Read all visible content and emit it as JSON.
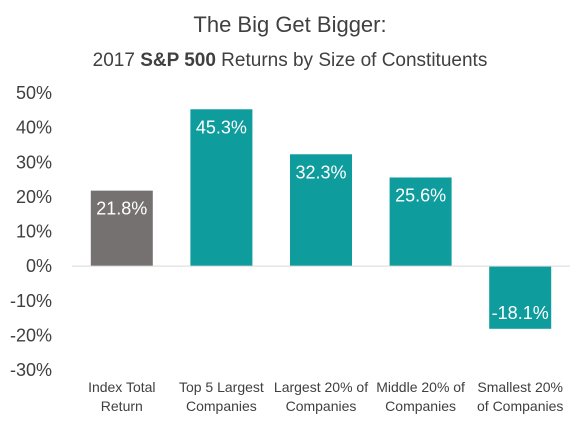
{
  "chart_data": {
    "type": "bar",
    "title": "The Big Get Bigger:",
    "subtitle": {
      "prefix": "2017 ",
      "bold": "S&P 500",
      "suffix": " Returns by Size of Constituents"
    },
    "categories": [
      [
        "Index Total",
        "Return"
      ],
      [
        "Top 5 Largest",
        "Companies"
      ],
      [
        "Largest 20% of",
        "Companies"
      ],
      [
        "Middle 20% of",
        "Companies"
      ],
      [
        "Smallest 20%",
        "of Companies"
      ]
    ],
    "values": [
      21.8,
      45.3,
      32.3,
      25.6,
      -18.1
    ],
    "value_labels": [
      "21.8%",
      "45.3%",
      "32.3%",
      "25.6%",
      "-18.1%"
    ],
    "bar_colors": [
      "#767171",
      "#0e9c9c",
      "#0e9c9c",
      "#0e9c9c",
      "#0e9c9c"
    ],
    "ylim": [
      -30,
      50
    ],
    "yticks": [
      50,
      40,
      30,
      20,
      10,
      0,
      -10,
      -20,
      -30
    ],
    "ytick_labels": [
      "50%",
      "40%",
      "30%",
      "20%",
      "10%",
      "0%",
      "-10%",
      "-20%",
      "-30%"
    ],
    "xlabel": "",
    "ylabel": "",
    "grid": false,
    "legend": false
  }
}
